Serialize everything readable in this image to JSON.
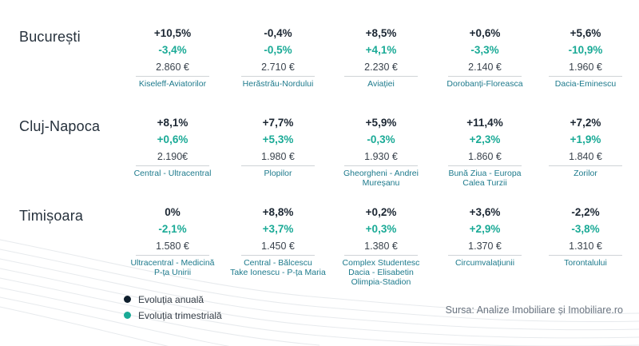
{
  "colors": {
    "annual_dot": "#0e1e2c",
    "quarterly": "#1aaa96",
    "area_text": "#1d7a8c"
  },
  "cities": [
    {
      "name": "București",
      "areas": [
        {
          "annual": "+10,5%",
          "quarterly": "-3,4%",
          "price": "2.860 €",
          "name": "Kiseleff-Aviatorilor"
        },
        {
          "annual": "-0,4%",
          "quarterly": "-0,5%",
          "price": "2.710 €",
          "name": "Herăstrău-Nordului"
        },
        {
          "annual": "+8,5%",
          "quarterly": "+4,1%",
          "price": "2.230 €",
          "name": "Aviației"
        },
        {
          "annual": "+0,6%",
          "quarterly": "-3,3%",
          "price": "2.140 €",
          "name": "Dorobanți-Floreasca"
        },
        {
          "annual": "+5,6%",
          "quarterly": "-10,9%",
          "price": "1.960 €",
          "name": "Dacia-Eminescu"
        }
      ]
    },
    {
      "name": "Cluj-Napoca",
      "areas": [
        {
          "annual": "+8,1%",
          "quarterly": "+0,6%",
          "price": "2.190€",
          "name": "Central - Ultracentral"
        },
        {
          "annual": "+7,7%",
          "quarterly": "+5,3%",
          "price": "1.980 €",
          "name": "Plopilor"
        },
        {
          "annual": "+5,9%",
          "quarterly": "-0,3%",
          "price": "1.930 €",
          "name": "Gheorgheni - Andrei\nMureșanu"
        },
        {
          "annual": "+11,4%",
          "quarterly": "+2,3%",
          "price": "1.860 €",
          "name": "Bună Ziua - Europa\nCalea Turzii"
        },
        {
          "annual": "+7,2%",
          "quarterly": "+1,9%",
          "price": "1.840 €",
          "name": "Zorilor"
        }
      ]
    },
    {
      "name": "Timișoara",
      "areas": [
        {
          "annual": "0%",
          "quarterly": "-2,1%",
          "price": "1.580 €",
          "name": "Ultracentral - Medicină\nP-ța Unirii"
        },
        {
          "annual": "+8,8%",
          "quarterly": "+3,7%",
          "price": "1.450 €",
          "name": "Central - Bălcescu\nTake Ionescu - P-ța Maria"
        },
        {
          "annual": "+0,2%",
          "quarterly": "+0,3%",
          "price": "1.380 €",
          "name": "Complex Studentesc\nDacia - Elisabetin\nOlimpia-Stadion"
        },
        {
          "annual": "+3,6%",
          "quarterly": "+2,9%",
          "price": "1.370 €",
          "name": "Circumvalațiunii"
        },
        {
          "annual": "-2,2%",
          "quarterly": "-3,8%",
          "price": "1.310 €",
          "name": "Torontalului"
        }
      ]
    }
  ],
  "legend": {
    "annual": "Evoluția anuală",
    "quarterly": "Evoluția trimestrială"
  },
  "source": "Sursa: Analize Imobiliare și Imobiliare.ro"
}
